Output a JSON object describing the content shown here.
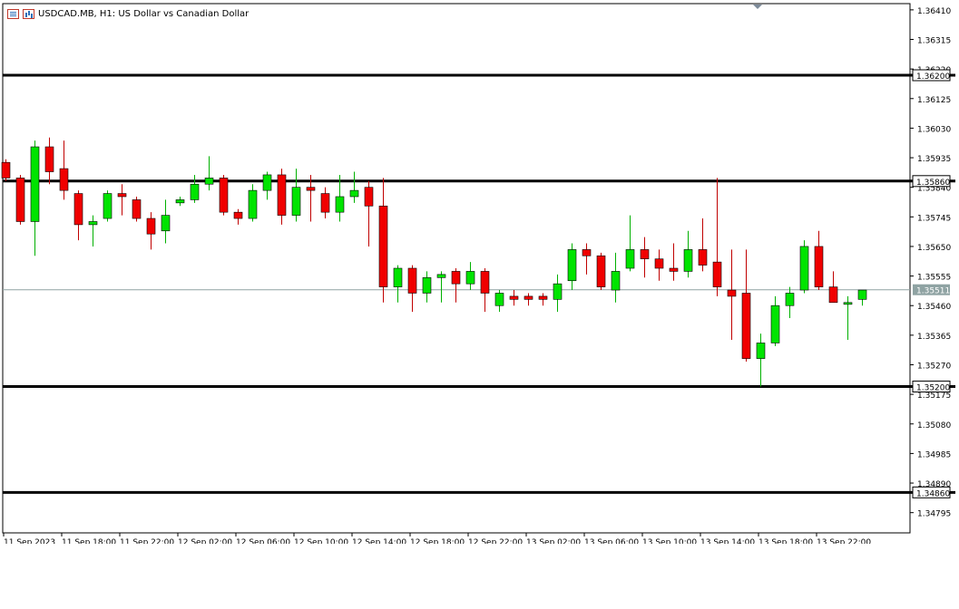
{
  "header": {
    "symbol_title": "USDCAD.MB, H1:  US Dollar vs Canadian Dollar",
    "menu_icon": "chart-menu-icon",
    "bars_icon": "bar-chart-icon"
  },
  "colors": {
    "bull": "#00e400",
    "bear": "#f00000",
    "wick_bull": "#00b000",
    "wick_bear": "#c00000",
    "level_line": "#000000",
    "bid_line": "#8fa3a3",
    "bid_label_bg": "#8fa3a3"
  },
  "chart_data": {
    "type": "candlestick",
    "title": "USDCAD.MB, H1:  US Dollar vs Canadian Dollar",
    "ylim": [
      1.3473,
      1.3643
    ],
    "y_ticks": [
      "1.36410",
      "1.36315",
      "1.36220",
      "1.36125",
      "1.36030",
      "1.35935",
      "1.35840",
      "1.35745",
      "1.35650",
      "1.35555",
      "1.35460",
      "1.35365",
      "1.35270",
      "1.35175",
      "1.35080",
      "1.34985",
      "1.34890",
      "1.34795"
    ],
    "x_labels": [
      "11 Sep 2023",
      "11 Sep 18:00",
      "11 Sep 22:00",
      "12 Sep 02:00",
      "12 Sep 06:00",
      "12 Sep 10:00",
      "12 Sep 14:00",
      "12 Sep 18:00",
      "12 Sep 22:00",
      "13 Sep 02:00",
      "13 Sep 06:00",
      "13 Sep 10:00",
      "13 Sep 14:00",
      "13 Sep 18:00",
      "13 Sep 22:00"
    ],
    "levels": [
      {
        "value": 1.362,
        "label": "1.36200"
      },
      {
        "value": 1.3586,
        "label": "1.35860"
      },
      {
        "value": 1.352,
        "label": "1.35200"
      },
      {
        "value": 1.3486,
        "label": "1.34860"
      }
    ],
    "current_price": {
      "value": 1.35511,
      "label": "1.35511"
    },
    "candles": [
      {
        "o": 1.3592,
        "h": 1.3593,
        "l": 1.3586,
        "c": 1.3587
      },
      {
        "o": 1.3587,
        "h": 1.3588,
        "l": 1.3572,
        "c": 1.3573
      },
      {
        "o": 1.3573,
        "h": 1.3599,
        "l": 1.3562,
        "c": 1.3597
      },
      {
        "o": 1.3597,
        "h": 1.36,
        "l": 1.3585,
        "c": 1.3589
      },
      {
        "o": 1.359,
        "h": 1.3599,
        "l": 1.358,
        "c": 1.3583
      },
      {
        "o": 1.3582,
        "h": 1.3583,
        "l": 1.3567,
        "c": 1.3572
      },
      {
        "o": 1.3572,
        "h": 1.3575,
        "l": 1.3565,
        "c": 1.3573
      },
      {
        "o": 1.3574,
        "h": 1.3583,
        "l": 1.3573,
        "c": 1.3582
      },
      {
        "o": 1.3582,
        "h": 1.3585,
        "l": 1.3575,
        "c": 1.3581
      },
      {
        "o": 1.358,
        "h": 1.3581,
        "l": 1.3573,
        "c": 1.3574
      },
      {
        "o": 1.3574,
        "h": 1.3576,
        "l": 1.3564,
        "c": 1.3569
      },
      {
        "o": 1.357,
        "h": 1.358,
        "l": 1.3566,
        "c": 1.3575
      },
      {
        "o": 1.3579,
        "h": 1.3581,
        "l": 1.3578,
        "c": 1.358
      },
      {
        "o": 1.358,
        "h": 1.3588,
        "l": 1.3579,
        "c": 1.3585
      },
      {
        "o": 1.3585,
        "h": 1.3594,
        "l": 1.3583,
        "c": 1.3587
      },
      {
        "o": 1.3587,
        "h": 1.3588,
        "l": 1.3575,
        "c": 1.3576
      },
      {
        "o": 1.3576,
        "h": 1.3577,
        "l": 1.3572,
        "c": 1.3574
      },
      {
        "o": 1.3574,
        "h": 1.3585,
        "l": 1.3573,
        "c": 1.3583
      },
      {
        "o": 1.3583,
        "h": 1.3589,
        "l": 1.358,
        "c": 1.3588
      },
      {
        "o": 1.3588,
        "h": 1.359,
        "l": 1.3572,
        "c": 1.3575
      },
      {
        "o": 1.3575,
        "h": 1.359,
        "l": 1.3573,
        "c": 1.3584
      },
      {
        "o": 1.3584,
        "h": 1.3588,
        "l": 1.3573,
        "c": 1.3583
      },
      {
        "o": 1.3582,
        "h": 1.3584,
        "l": 1.3574,
        "c": 1.3576
      },
      {
        "o": 1.3576,
        "h": 1.3588,
        "l": 1.3573,
        "c": 1.3581
      },
      {
        "o": 1.3581,
        "h": 1.3589,
        "l": 1.3579,
        "c": 1.3583
      },
      {
        "o": 1.3584,
        "h": 1.3586,
        "l": 1.3565,
        "c": 1.3578
      },
      {
        "o": 1.3578,
        "h": 1.3587,
        "l": 1.3547,
        "c": 1.3552
      },
      {
        "o": 1.3552,
        "h": 1.3559,
        "l": 1.3547,
        "c": 1.3558
      },
      {
        "o": 1.3558,
        "h": 1.3559,
        "l": 1.3544,
        "c": 1.355
      },
      {
        "o": 1.355,
        "h": 1.3557,
        "l": 1.3547,
        "c": 1.3555
      },
      {
        "o": 1.3555,
        "h": 1.3557,
        "l": 1.3547,
        "c": 1.3556
      },
      {
        "o": 1.3557,
        "h": 1.3558,
        "l": 1.3547,
        "c": 1.3553
      },
      {
        "o": 1.3553,
        "h": 1.356,
        "l": 1.3551,
        "c": 1.3557
      },
      {
        "o": 1.3557,
        "h": 1.3558,
        "l": 1.3544,
        "c": 1.355
      },
      {
        "o": 1.3546,
        "h": 1.3551,
        "l": 1.3544,
        "c": 1.355
      },
      {
        "o": 1.3549,
        "h": 1.3551,
        "l": 1.3546,
        "c": 1.3548
      },
      {
        "o": 1.3549,
        "h": 1.355,
        "l": 1.3546,
        "c": 1.3548
      },
      {
        "o": 1.3549,
        "h": 1.355,
        "l": 1.3546,
        "c": 1.3548
      },
      {
        "o": 1.3548,
        "h": 1.3556,
        "l": 1.3544,
        "c": 1.3553
      },
      {
        "o": 1.3554,
        "h": 1.3566,
        "l": 1.3551,
        "c": 1.3564
      },
      {
        "o": 1.3564,
        "h": 1.3566,
        "l": 1.3556,
        "c": 1.3562
      },
      {
        "o": 1.3562,
        "h": 1.3563,
        "l": 1.3551,
        "c": 1.3552
      },
      {
        "o": 1.3551,
        "h": 1.3563,
        "l": 1.3547,
        "c": 1.3557
      },
      {
        "o": 1.3558,
        "h": 1.3575,
        "l": 1.3557,
        "c": 1.3564
      },
      {
        "o": 1.3564,
        "h": 1.3568,
        "l": 1.3555,
        "c": 1.3561
      },
      {
        "o": 1.3561,
        "h": 1.3564,
        "l": 1.3554,
        "c": 1.3558
      },
      {
        "o": 1.3558,
        "h": 1.3566,
        "l": 1.3554,
        "c": 1.3557
      },
      {
        "o": 1.3557,
        "h": 1.357,
        "l": 1.3555,
        "c": 1.3564
      },
      {
        "o": 1.3564,
        "h": 1.3574,
        "l": 1.3557,
        "c": 1.3559
      },
      {
        "o": 1.356,
        "h": 1.3587,
        "l": 1.3549,
        "c": 1.3552
      },
      {
        "o": 1.3551,
        "h": 1.3564,
        "l": 1.3535,
        "c": 1.3549
      },
      {
        "o": 1.355,
        "h": 1.3564,
        "l": 1.3528,
        "c": 1.3529
      },
      {
        "o": 1.3529,
        "h": 1.3537,
        "l": 1.352,
        "c": 1.3534
      },
      {
        "o": 1.3534,
        "h": 1.3549,
        "l": 1.3533,
        "c": 1.3546
      },
      {
        "o": 1.3546,
        "h": 1.3552,
        "l": 1.3542,
        "c": 1.355
      },
      {
        "o": 1.3551,
        "h": 1.3567,
        "l": 1.355,
        "c": 1.3565
      },
      {
        "o": 1.3565,
        "h": 1.357,
        "l": 1.3551,
        "c": 1.3552
      },
      {
        "o": 1.3552,
        "h": 1.3557,
        "l": 1.3547,
        "c": 1.3547
      },
      {
        "o": 1.3547,
        "h": 1.3549,
        "l": 1.3535,
        "c": 1.3547
      },
      {
        "o": 1.3548,
        "h": 1.3551,
        "l": 1.3546,
        "c": 1.3551
      }
    ]
  }
}
